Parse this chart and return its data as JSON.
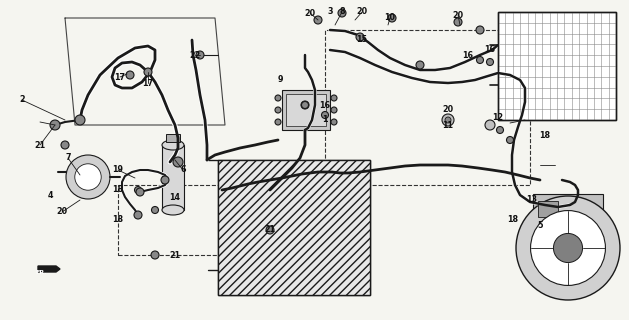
{
  "bg_color": "#f5f5f0",
  "fig_width": 6.29,
  "fig_height": 3.2,
  "dpi": 100,
  "lc": "#1a1a1a",
  "tc": "#111111",
  "fs": 5.8
}
